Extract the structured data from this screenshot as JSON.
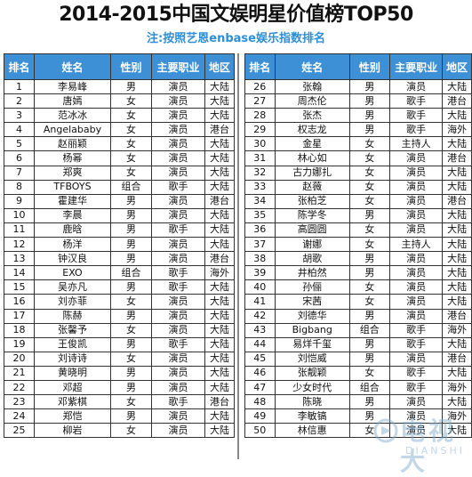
{
  "title": "2014-2015中国文娱明星价值榜TOP50",
  "subtitle": "注:按照艺恩enbase娱乐指数排名",
  "columns": [
    "排名",
    "姓名",
    "性别",
    "主要职业",
    "地区"
  ],
  "rows_left": [
    [
      "1",
      "李易峰",
      "男",
      "演员",
      "大陆"
    ],
    [
      "2",
      "唐嫣",
      "女",
      "演员",
      "大陆"
    ],
    [
      "3",
      "范冰冰",
      "女",
      "演员",
      "大陆"
    ],
    [
      "4",
      "Angelababy",
      "女",
      "演员",
      "港台"
    ],
    [
      "5",
      "赵丽颖",
      "女",
      "演员",
      "大陆"
    ],
    [
      "6",
      "杨幂",
      "女",
      "演员",
      "大陆"
    ],
    [
      "7",
      "郑爽",
      "女",
      "演员",
      "大陆"
    ],
    [
      "8",
      "TFBOYS",
      "组合",
      "歌手",
      "大陆"
    ],
    [
      "9",
      "霍建华",
      "男",
      "演员",
      "港台"
    ],
    [
      "10",
      "李晨",
      "男",
      "演员",
      "大陆"
    ],
    [
      "11",
      "鹿晗",
      "男",
      "歌手",
      "大陆"
    ],
    [
      "12",
      "杨洋",
      "男",
      "演员",
      "大陆"
    ],
    [
      "13",
      "钟汉良",
      "男",
      "演员",
      "港台"
    ],
    [
      "14",
      "EXO",
      "组合",
      "歌手",
      "海外"
    ],
    [
      "15",
      "吴亦凡",
      "男",
      "歌手",
      "大陆"
    ],
    [
      "16",
      "刘亦菲",
      "女",
      "演员",
      "大陆"
    ],
    [
      "17",
      "陈赫",
      "男",
      "演员",
      "大陆"
    ],
    [
      "18",
      "张馨予",
      "女",
      "演员",
      "大陆"
    ],
    [
      "19",
      "王俊凯",
      "男",
      "歌手",
      "大陆"
    ],
    [
      "20",
      "刘诗诗",
      "女",
      "演员",
      "大陆"
    ],
    [
      "21",
      "黄晓明",
      "男",
      "演员",
      "大陆"
    ],
    [
      "22",
      "邓超",
      "男",
      "演员",
      "大陆"
    ],
    [
      "23",
      "邓紫棋",
      "女",
      "歌手",
      "港台"
    ],
    [
      "24",
      "郑恺",
      "男",
      "演员",
      "大陆"
    ],
    [
      "25",
      "柳岩",
      "女",
      "演员",
      "大陆"
    ]
  ],
  "rows_right": [
    [
      "26",
      "张翰",
      "男",
      "演员",
      "大陆"
    ],
    [
      "27",
      "周杰伦",
      "男",
      "歌手",
      "港台"
    ],
    [
      "28",
      "张杰",
      "男",
      "歌手",
      "大陆"
    ],
    [
      "29",
      "权志龙",
      "男",
      "歌手",
      "海外"
    ],
    [
      "30",
      "金星",
      "女",
      "主持人",
      "大陆"
    ],
    [
      "31",
      "林心如",
      "女",
      "演员",
      "港台"
    ],
    [
      "32",
      "古力娜扎",
      "女",
      "演员",
      "大陆"
    ],
    [
      "33",
      "赵薇",
      "女",
      "演员",
      "大陆"
    ],
    [
      "34",
      "张柏芝",
      "女",
      "演员",
      "港台"
    ],
    [
      "35",
      "陈学冬",
      "男",
      "演员",
      "大陆"
    ],
    [
      "36",
      "高圆圆",
      "女",
      "演员",
      "大陆"
    ],
    [
      "37",
      "谢娜",
      "女",
      "主持人",
      "大陆"
    ],
    [
      "38",
      "胡歌",
      "男",
      "演员",
      "大陆"
    ],
    [
      "39",
      "井柏然",
      "男",
      "演员",
      "大陆"
    ],
    [
      "40",
      "孙俪",
      "女",
      "演员",
      "大陆"
    ],
    [
      "41",
      "宋茜",
      "女",
      "演员",
      "大陆"
    ],
    [
      "42",
      "刘德华",
      "男",
      "演员",
      "港台"
    ],
    [
      "43",
      "Bigbang",
      "组合",
      "歌手",
      "海外"
    ],
    [
      "44",
      "易烊千玺",
      "男",
      "歌手",
      "大陆"
    ],
    [
      "45",
      "刘恺威",
      "男",
      "演员",
      "港台"
    ],
    [
      "46",
      "张靓颖",
      "女",
      "歌手",
      "大陆"
    ],
    [
      "47",
      "少女时代",
      "组合",
      "歌手",
      "海外"
    ],
    [
      "48",
      "陈晓",
      "男",
      "演员",
      "大陆"
    ],
    [
      "49",
      "李敏镐",
      "男",
      "演员",
      "海外"
    ],
    [
      "50",
      "林信惠",
      "女",
      "演员",
      "大陆"
    ]
  ],
  "watermark": {
    "text": "电视大",
    "sub": "DIANSHI",
    "color": "#7aa9c9"
  },
  "colors": {
    "header_bg": "#3d8fd6",
    "subtitle": "#2d8fd6"
  }
}
